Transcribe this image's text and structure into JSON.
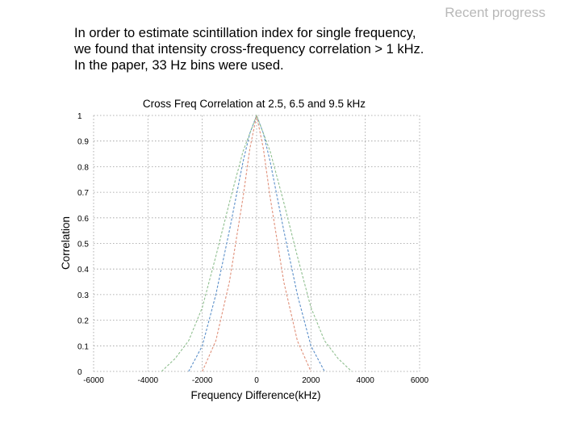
{
  "slide": {
    "header": "Recent progress",
    "intro_lines": [
      "In order to estimate scintillation index for single frequency,",
      "we found that intensity cross-frequency correlation  > 1 kHz.",
      "In the paper, 33 Hz bins were used."
    ]
  },
  "chart_data": {
    "type": "line",
    "title": "Cross Freq Correlation at 2.5, 6.5 and 9.5 kHz",
    "xlabel": "Frequency Difference(kHz)",
    "ylabel": "Correlation",
    "xlim": [
      -6000,
      6000
    ],
    "ylim": [
      0,
      1
    ],
    "xticks": [
      -6000,
      -4000,
      -2000,
      0,
      2000,
      4000,
      6000
    ],
    "yticks": [
      0,
      0.1,
      0.2,
      0.3,
      0.4,
      0.5,
      0.6,
      0.7,
      0.8,
      0.9,
      1
    ],
    "xtick_labels": [
      "-6000",
      "-4000",
      "-2000",
      "0",
      "2000",
      "4000",
      "6000"
    ],
    "ytick_labels": [
      "0",
      "0.1",
      "0.2",
      "0.3",
      "0.4",
      "0.5",
      "0.6",
      "0.7",
      "0.8",
      "0.9",
      "1"
    ],
    "grid": true,
    "series": [
      {
        "color": "#5b8fc9",
        "x": [
          -2500,
          -2000,
          -1500,
          -1000,
          -500,
          -250,
          0,
          250,
          500,
          1000,
          1500,
          2000,
          2500
        ],
        "y": [
          0.0,
          0.1,
          0.3,
          0.55,
          0.82,
          0.93,
          1.0,
          0.93,
          0.82,
          0.55,
          0.3,
          0.1,
          0.0
        ]
      },
      {
        "color": "#e0907a",
        "x": [
          -2000,
          -1500,
          -1000,
          -500,
          -250,
          0,
          250,
          500,
          1000,
          1500,
          2000
        ],
        "y": [
          0.0,
          0.12,
          0.35,
          0.68,
          0.87,
          1.0,
          0.87,
          0.68,
          0.35,
          0.12,
          0.0
        ]
      },
      {
        "color": "#8fbf8f",
        "x": [
          -3500,
          -3000,
          -2500,
          -2000,
          -1500,
          -1000,
          -500,
          0,
          500,
          1000,
          1500,
          2000,
          2500,
          3000,
          3500
        ],
        "y": [
          0.0,
          0.05,
          0.12,
          0.25,
          0.45,
          0.66,
          0.86,
          1.0,
          0.86,
          0.66,
          0.45,
          0.25,
          0.12,
          0.05,
          0.0
        ]
      }
    ]
  }
}
